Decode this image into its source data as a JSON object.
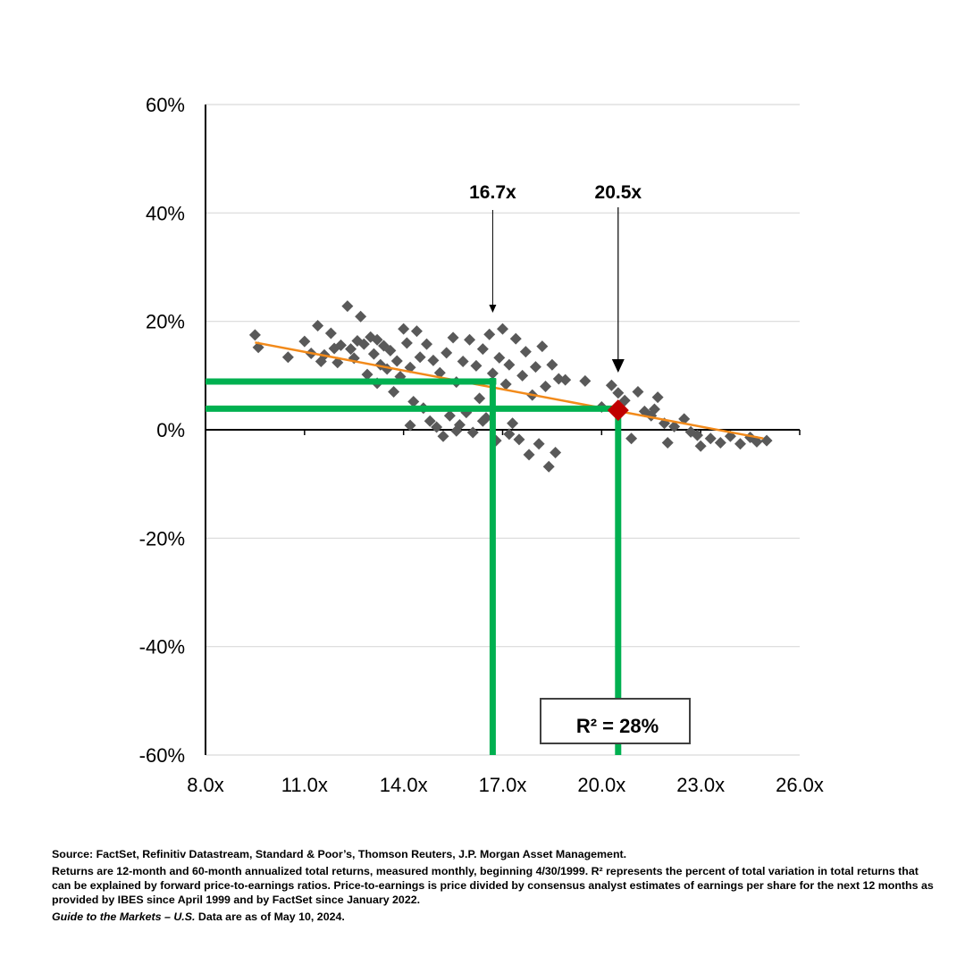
{
  "chart_data": {
    "type": "scatter",
    "title": "",
    "xlabel": "",
    "ylabel": "",
    "xlim": [
      8.0,
      26.0
    ],
    "ylim": [
      -60,
      60
    ],
    "x_ticks": [
      {
        "value": 8.0,
        "label": "8.0x"
      },
      {
        "value": 11.0,
        "label": "11.0x"
      },
      {
        "value": 14.0,
        "label": "14.0x"
      },
      {
        "value": 17.0,
        "label": "17.0x"
      },
      {
        "value": 20.0,
        "label": "20.0x"
      },
      {
        "value": 23.0,
        "label": "23.0x"
      },
      {
        "value": 26.0,
        "label": "26.0x"
      }
    ],
    "y_ticks": [
      {
        "value": 60,
        "label": "60%"
      },
      {
        "value": 40,
        "label": "40%"
      },
      {
        "value": 20,
        "label": "20%"
      },
      {
        "value": 0,
        "label": "0%"
      },
      {
        "value": -20,
        "label": "-20%"
      },
      {
        "value": -40,
        "label": "-40%"
      },
      {
        "value": -60,
        "label": "-60%"
      }
    ],
    "grid": true,
    "series": [
      {
        "color": "#595959",
        "marker": "diamond",
        "points": [
          [
            9.5,
            17.5
          ],
          [
            9.6,
            15.2
          ],
          [
            11.0,
            16.3
          ],
          [
            11.2,
            14.1
          ],
          [
            11.4,
            19.2
          ],
          [
            11.6,
            13.8
          ],
          [
            11.8,
            17.8
          ],
          [
            11.9,
            15.0
          ],
          [
            12.0,
            12.4
          ],
          [
            12.1,
            15.6
          ],
          [
            12.3,
            22.8
          ],
          [
            12.4,
            14.9
          ],
          [
            12.5,
            13.2
          ],
          [
            12.6,
            16.4
          ],
          [
            12.7,
            20.9
          ],
          [
            12.8,
            15.8
          ],
          [
            12.9,
            10.2
          ],
          [
            13.0,
            17.1
          ],
          [
            13.1,
            14.0
          ],
          [
            13.2,
            16.6
          ],
          [
            13.3,
            12.0
          ],
          [
            13.4,
            15.5
          ],
          [
            13.5,
            11.2
          ],
          [
            13.6,
            14.6
          ],
          [
            13.7,
            7.0
          ],
          [
            13.8,
            12.7
          ],
          [
            13.9,
            9.8
          ],
          [
            14.0,
            18.6
          ],
          [
            14.1,
            16.0
          ],
          [
            14.2,
            11.5
          ],
          [
            14.3,
            5.2
          ],
          [
            14.4,
            18.2
          ],
          [
            14.5,
            13.4
          ],
          [
            14.6,
            4.0
          ],
          [
            14.7,
            15.8
          ],
          [
            14.8,
            1.6
          ],
          [
            14.9,
            12.8
          ],
          [
            15.0,
            0.5
          ],
          [
            15.1,
            10.5
          ],
          [
            15.2,
            -1.2
          ],
          [
            15.3,
            14.2
          ],
          [
            15.4,
            2.6
          ],
          [
            15.5,
            17.0
          ],
          [
            15.6,
            8.8
          ],
          [
            15.7,
            0.9
          ],
          [
            15.8,
            12.6
          ],
          [
            15.9,
            3.2
          ],
          [
            16.0,
            16.6
          ],
          [
            16.1,
            -0.5
          ],
          [
            16.2,
            11.8
          ],
          [
            16.3,
            5.8
          ],
          [
            16.4,
            14.9
          ],
          [
            16.5,
            2.2
          ],
          [
            16.6,
            17.6
          ],
          [
            16.7,
            10.4
          ],
          [
            16.8,
            -2.0
          ],
          [
            16.9,
            13.3
          ],
          [
            17.0,
            18.6
          ],
          [
            17.1,
            8.4
          ],
          [
            17.2,
            12.0
          ],
          [
            17.3,
            1.2
          ],
          [
            17.4,
            16.8
          ],
          [
            17.5,
            -1.8
          ],
          [
            17.6,
            10.0
          ],
          [
            17.7,
            14.4
          ],
          [
            17.8,
            -4.6
          ],
          [
            17.9,
            6.4
          ],
          [
            18.0,
            11.6
          ],
          [
            18.1,
            -2.6
          ],
          [
            18.2,
            15.4
          ],
          [
            18.3,
            8.0
          ],
          [
            18.4,
            -6.8
          ],
          [
            18.5,
            12.0
          ],
          [
            18.6,
            -4.2
          ],
          [
            18.7,
            9.4
          ],
          [
            19.5,
            9.0
          ],
          [
            20.0,
            4.2
          ],
          [
            20.3,
            8.2
          ],
          [
            20.5,
            6.8
          ],
          [
            20.7,
            5.4
          ],
          [
            20.9,
            -1.6
          ],
          [
            21.1,
            7.0
          ],
          [
            21.3,
            3.4
          ],
          [
            21.5,
            2.6
          ],
          [
            21.7,
            6.0
          ],
          [
            21.9,
            1.2
          ],
          [
            22.0,
            -2.4
          ],
          [
            22.2,
            0.6
          ],
          [
            22.5,
            2.0
          ],
          [
            22.9,
            -1.0
          ],
          [
            23.0,
            -3.0
          ],
          [
            23.3,
            -1.6
          ],
          [
            23.6,
            -2.4
          ],
          [
            23.9,
            -1.2
          ],
          [
            24.2,
            -2.6
          ],
          [
            24.5,
            -1.4
          ],
          [
            24.7,
            -2.2
          ],
          [
            25.0,
            -2.0
          ],
          [
            10.5,
            13.4
          ],
          [
            11.5,
            12.6
          ],
          [
            13.2,
            8.6
          ],
          [
            14.2,
            0.8
          ],
          [
            15.6,
            -0.2
          ],
          [
            16.4,
            1.6
          ],
          [
            17.2,
            -0.8
          ],
          [
            18.9,
            9.2
          ],
          [
            21.6,
            3.8
          ],
          [
            22.7,
            -0.4
          ]
        ]
      }
    ],
    "trendline": {
      "color": "#f28a1a",
      "x": [
        9.5,
        24.9
      ],
      "y": [
        16.1,
        -1.6
      ]
    },
    "highlight_point": {
      "x": 20.5,
      "y": 3.6,
      "color": "#c00000"
    },
    "reference_lines": {
      "color": "#00b050",
      "vertical": [
        16.7,
        20.5
      ],
      "horizontal": [
        {
          "y": 8.9,
          "to_x": 16.7
        },
        {
          "y": 3.9,
          "to_x": 20.5
        }
      ]
    },
    "annotations": [
      {
        "label": "16.7x",
        "x": 16.7
      },
      {
        "label": "20.5x",
        "x": 20.5
      }
    ],
    "r_squared_label": "R²  = 28%"
  },
  "notes": {
    "source": "Source: FactSet, Refinitiv Datastream, Standard & Poor’s, Thomson Reuters, J.P. Morgan Asset Management.",
    "description": "Returns are 12-month and 60-month annualized total returns, measured monthly, beginning 4/30/1999. R² represents the percent of total variation in total returns that can be explained by forward price-to-earnings ratios. Price-to-earnings is price divided by consensus analyst estimates of earnings per share for the next 12 months as provided by IBES since April 1999 and by FactSet since January 2022.",
    "guide_title": "Guide to the Markets – U.S.",
    "data_date": " Data are as of May 10, 2024."
  }
}
